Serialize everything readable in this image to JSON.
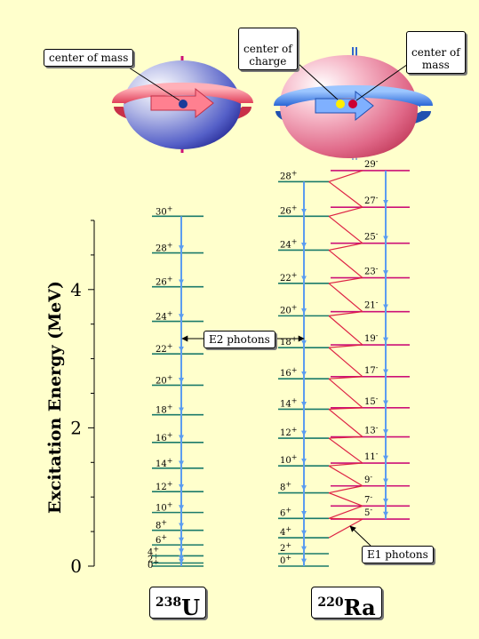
{
  "nuclei": {
    "left": {
      "callouts": {
        "com": "center of mass"
      }
    },
    "right": {
      "callouts": {
        "coc": "center of\ncharge",
        "com": "center of\nmass"
      }
    }
  },
  "axis": {
    "title": "Excitation Energy (MeV)",
    "ticks": [
      "0",
      "2",
      "4"
    ],
    "range_mev": [
      0,
      5
    ]
  },
  "annotations": {
    "e2": "E2 photons",
    "e1": "E1 photons"
  },
  "u238": {
    "mass": "238",
    "symbol": "U",
    "levels": [
      {
        "spin": "0",
        "parity": "+",
        "energy": 0.0
      },
      {
        "spin": "2",
        "parity": "+",
        "energy": 0.045
      },
      {
        "spin": "4",
        "parity": "+",
        "energy": 0.148
      },
      {
        "spin": "6",
        "parity": "+",
        "energy": 0.307
      },
      {
        "spin": "8",
        "parity": "+",
        "energy": 0.518
      },
      {
        "spin": "10",
        "parity": "+",
        "energy": 0.776
      },
      {
        "spin": "12",
        "parity": "+",
        "energy": 1.077
      },
      {
        "spin": "14",
        "parity": "+",
        "energy": 1.416
      },
      {
        "spin": "16",
        "parity": "+",
        "energy": 1.789
      },
      {
        "spin": "18",
        "parity": "+",
        "energy": 2.189
      },
      {
        "spin": "20",
        "parity": "+",
        "energy": 2.617
      },
      {
        "spin": "22",
        "parity": "+",
        "energy": 3.07
      },
      {
        "spin": "24",
        "parity": "+",
        "energy": 3.54
      },
      {
        "spin": "26",
        "parity": "+",
        "energy": 4.04
      },
      {
        "spin": "28",
        "parity": "+",
        "energy": 4.53
      },
      {
        "spin": "30",
        "parity": "+",
        "energy": 5.06
      }
    ]
  },
  "ra220": {
    "mass": "220",
    "symbol": "Ra",
    "even_levels": [
      {
        "spin": "0",
        "parity": "+",
        "energy": 0.0
      },
      {
        "spin": "2",
        "parity": "+",
        "energy": 0.18
      },
      {
        "spin": "4",
        "parity": "+",
        "energy": 0.41
      },
      {
        "spin": "6",
        "parity": "+",
        "energy": 0.69
      },
      {
        "spin": "8",
        "parity": "+",
        "energy": 1.06
      },
      {
        "spin": "10",
        "parity": "+",
        "energy": 1.45
      },
      {
        "spin": "12",
        "parity": "+",
        "energy": 1.85
      },
      {
        "spin": "14",
        "parity": "+",
        "energy": 2.27
      },
      {
        "spin": "16",
        "parity": "+",
        "energy": 2.71
      },
      {
        "spin": "18",
        "parity": "+",
        "energy": 3.16
      },
      {
        "spin": "20",
        "parity": "+",
        "energy": 3.62
      },
      {
        "spin": "22",
        "parity": "+",
        "energy": 4.09
      },
      {
        "spin": "24",
        "parity": "+",
        "energy": 4.57
      },
      {
        "spin": "26",
        "parity": "+",
        "energy": 5.06
      },
      {
        "spin": "28",
        "parity": "+",
        "energy": 5.56
      }
    ],
    "odd_levels": [
      {
        "spin": "5",
        "parity": "-",
        "energy": 0.68
      },
      {
        "spin": "7",
        "parity": "-",
        "energy": 0.87
      },
      {
        "spin": "9",
        "parity": "-",
        "energy": 1.16
      },
      {
        "spin": "11",
        "parity": "-",
        "energy": 1.49
      },
      {
        "spin": "13",
        "parity": "-",
        "energy": 1.87
      },
      {
        "spin": "15",
        "parity": "-",
        "energy": 2.29
      },
      {
        "spin": "17",
        "parity": "-",
        "energy": 2.74
      },
      {
        "spin": "19",
        "parity": "-",
        "energy": 3.2
      },
      {
        "spin": "21",
        "parity": "-",
        "energy": 3.68
      },
      {
        "spin": "23",
        "parity": "-",
        "energy": 4.17
      },
      {
        "spin": "25",
        "parity": "-",
        "energy": 4.67
      },
      {
        "spin": "27",
        "parity": "-",
        "energy": 5.19
      },
      {
        "spin": "29",
        "parity": "-",
        "energy": 5.72
      }
    ]
  },
  "colors": {
    "background": "#ffffcc",
    "e2_level": "#1a7a6a",
    "e2_arrow": "#5b9cf0",
    "e1_level": "#cc1177",
    "e1_arrow": "#dd2244",
    "center_of_mass_dot": "#1a3a99",
    "center_of_charge_dot": "#ffee00",
    "center_of_mass_dot_pear": "#cc0033"
  }
}
